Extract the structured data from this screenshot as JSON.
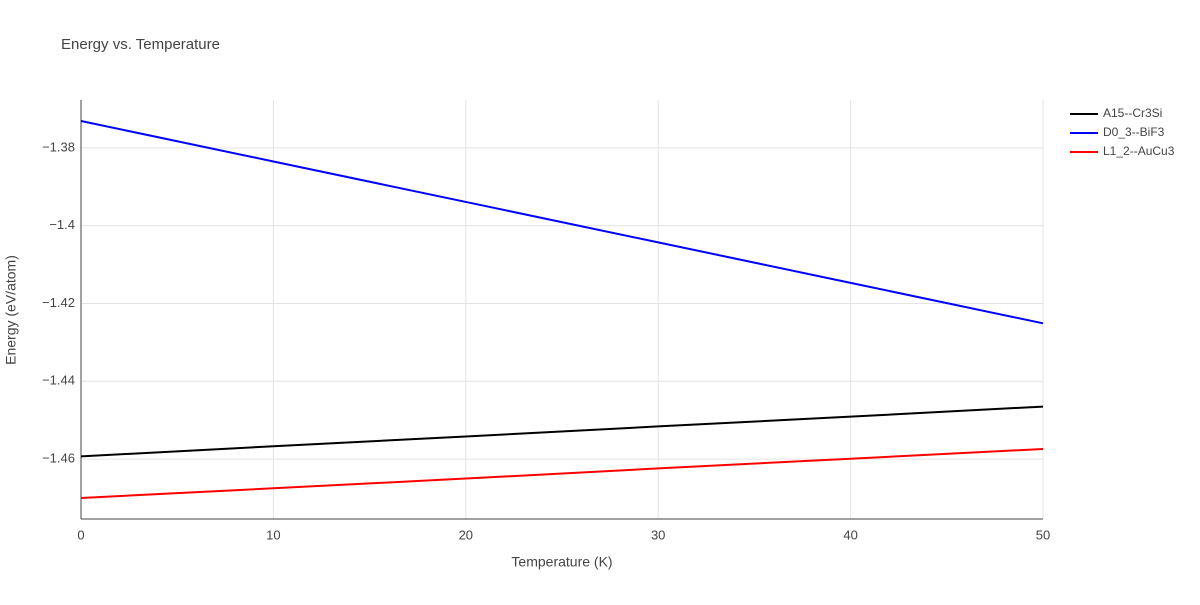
{
  "chart_data": {
    "type": "line",
    "title": "Energy vs. Temperature",
    "x_label": "Temperature (K)",
    "y_label": "Energy (eV/atom)",
    "x": [
      0,
      10,
      20,
      30,
      40,
      50
    ],
    "series": [
      {
        "name": "A15--Cr3Si",
        "color": "#000000",
        "values": [
          -1.4593,
          -1.4567,
          -1.4542,
          -1.4516,
          -1.4491,
          -1.4465
        ]
      },
      {
        "name": "D0_3--BiF3",
        "color": "#0000ff",
        "values": [
          -1.3731,
          -1.3835,
          -1.3939,
          -1.4043,
          -1.4147,
          -1.4251
        ]
      },
      {
        "name": "L1_2--AuCu3",
        "color": "#ff0000",
        "values": [
          -1.47,
          -1.4675,
          -1.465,
          -1.4624,
          -1.4599,
          -1.4574
        ]
      }
    ],
    "xlim": [
      0,
      50
    ],
    "xticks": [
      0,
      10,
      20,
      30,
      40,
      50
    ],
    "ylim": [
      -1.4754,
      -1.3677
    ],
    "yticks": [
      {
        "value": -1.46,
        "label": "−1.46"
      },
      {
        "value": -1.44,
        "label": "−1.44"
      },
      {
        "value": -1.42,
        "label": "−1.42"
      },
      {
        "value": -1.4,
        "label": "−1.4"
      },
      {
        "value": -1.38,
        "label": "−1.38"
      }
    ],
    "grid": true,
    "legend": "top-right"
  }
}
